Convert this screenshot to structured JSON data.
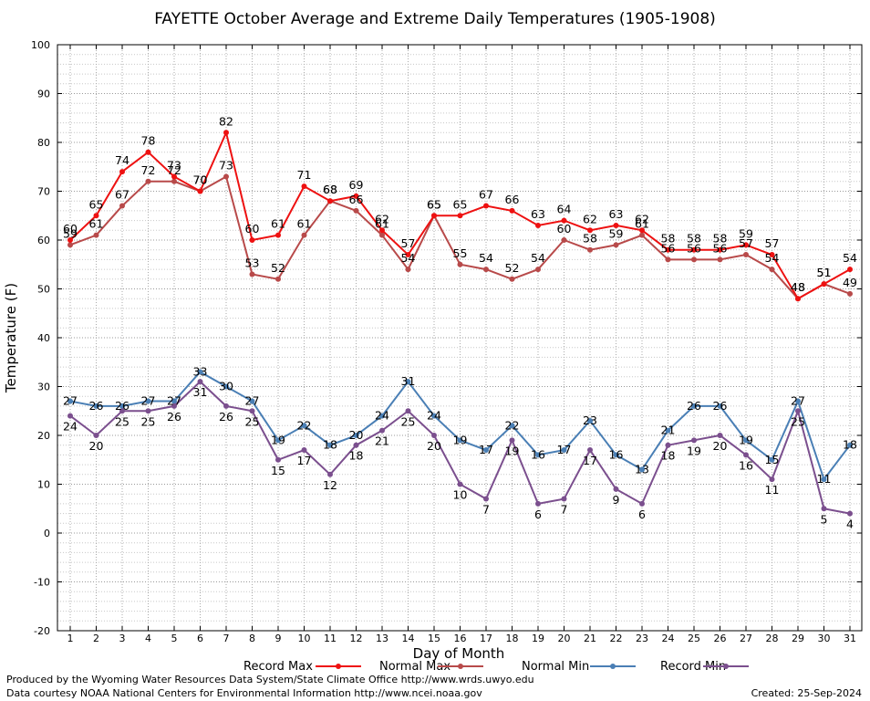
{
  "chart_data": {
    "type": "line",
    "title": "FAYETTE October Average and Extreme Daily Temperatures (1905-1908)",
    "xlabel": "Day of Month",
    "ylabel": "Temperature (F)",
    "ylim": [
      -20,
      100
    ],
    "yticks": [
      -20,
      -10,
      0,
      10,
      20,
      30,
      40,
      50,
      60,
      70,
      80,
      90,
      100
    ],
    "x": [
      1,
      2,
      3,
      4,
      5,
      6,
      7,
      8,
      9,
      10,
      11,
      12,
      13,
      14,
      15,
      16,
      17,
      18,
      19,
      20,
      21,
      22,
      23,
      24,
      25,
      26,
      27,
      28,
      29,
      30,
      31
    ],
    "grid": true,
    "legend_position": "bottom",
    "series": [
      {
        "name": "Record Max",
        "color": "#ee1111",
        "values": [
          60,
          65,
          74,
          78,
          73,
          70,
          82,
          60,
          61,
          71,
          68,
          69,
          62,
          57,
          65,
          65,
          67,
          66,
          63,
          64,
          62,
          63,
          62,
          58,
          58,
          58,
          59,
          57,
          48,
          51,
          54
        ]
      },
      {
        "name": "Normal Max",
        "color": "#b84a4a",
        "values": [
          59,
          61,
          67,
          72,
          72,
          70,
          73,
          53,
          52,
          61,
          68,
          66,
          61,
          54,
          65,
          55,
          54,
          52,
          54,
          60,
          58,
          59,
          61,
          56,
          56,
          56,
          57,
          54,
          48,
          51,
          49
        ]
      },
      {
        "name": "Normal Min",
        "color": "#4a7fb5",
        "values": [
          27,
          26,
          26,
          27,
          27,
          33,
          30,
          27,
          19,
          22,
          18,
          20,
          24,
          31,
          24,
          19,
          17,
          22,
          16,
          17,
          23,
          16,
          13,
          21,
          26,
          26,
          19,
          15,
          27,
          11,
          18
        ]
      },
      {
        "name": "Record Min",
        "color": "#7b4f8e",
        "values": [
          24,
          20,
          25,
          25,
          26,
          31,
          26,
          25,
          15,
          17,
          12,
          18,
          21,
          25,
          20,
          10,
          7,
          19,
          6,
          7,
          17,
          9,
          6,
          18,
          19,
          20,
          16,
          11,
          25,
          5,
          4
        ]
      }
    ]
  },
  "footer": {
    "line1": "Produced by the Wyoming Water Resources Data System/State Climate Office http://www.wrds.uwyo.edu",
    "line2": "Data courtesy NOAA National Centers for Environmental Information http://www.ncei.noaa.gov",
    "created": "Created:  25-Sep-2024"
  }
}
